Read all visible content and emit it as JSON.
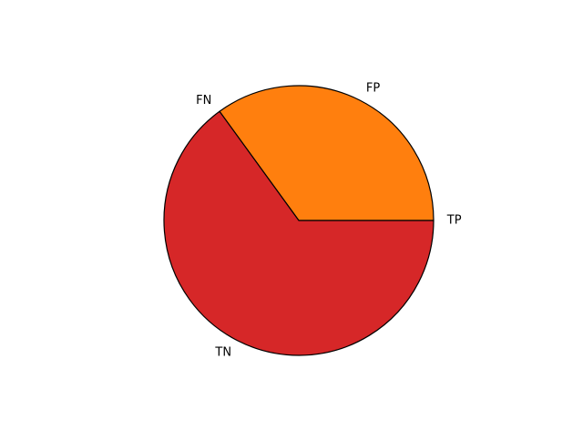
{
  "chart_data": {
    "type": "pie",
    "start_angle_deg": 0,
    "direction": "counterclockwise",
    "slices": [
      {
        "label": "TP",
        "value": 0,
        "color": "#1f77b4"
      },
      {
        "label": "FP",
        "value": 0.35,
        "color": "#ff7f0e"
      },
      {
        "label": "FN",
        "value": 0,
        "color": "#2ca02c"
      },
      {
        "label": "TN",
        "value": 0.65,
        "color": "#d62728"
      }
    ],
    "edge_color": "#000000",
    "title": "",
    "legend": false
  }
}
